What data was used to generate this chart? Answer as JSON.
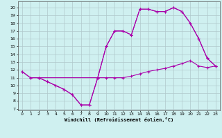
{
  "xlabel": "Windchill (Refroidissement éolien,°C)",
  "xlim": [
    -0.5,
    23.5
  ],
  "ylim": [
    6.8,
    20.8
  ],
  "yticks": [
    7,
    8,
    9,
    10,
    11,
    12,
    13,
    14,
    15,
    16,
    17,
    18,
    19,
    20
  ],
  "xticks": [
    0,
    1,
    2,
    3,
    4,
    5,
    6,
    7,
    8,
    9,
    10,
    11,
    12,
    13,
    14,
    15,
    16,
    17,
    18,
    19,
    20,
    21,
    22,
    23
  ],
  "bg_color": "#cff0f0",
  "grid_color": "#b0c8cc",
  "line_color": "#aa00aa",
  "line1_x": [
    0,
    1,
    2,
    3,
    4,
    5,
    6,
    7,
    8,
    9,
    10,
    11,
    12,
    13,
    14,
    15,
    16,
    17,
    18,
    19,
    20,
    21,
    22,
    23
  ],
  "line1_y": [
    11.8,
    11.0,
    11.0,
    10.5,
    10.0,
    9.5,
    8.8,
    7.5,
    7.5,
    11.0,
    11.0,
    11.0,
    11.0,
    11.2,
    11.5,
    11.8,
    12.0,
    12.2,
    12.5,
    12.8,
    13.2,
    12.5,
    12.3,
    12.5
  ],
  "line2_x": [
    0,
    1,
    2,
    3,
    4,
    5,
    6,
    7,
    8,
    9,
    10,
    11,
    12,
    13,
    14,
    15,
    16,
    17,
    18,
    19,
    20,
    21,
    22,
    23
  ],
  "line2_y": [
    11.8,
    11.0,
    11.0,
    10.5,
    10.0,
    9.5,
    8.8,
    7.5,
    7.5,
    11.0,
    15.0,
    17.0,
    17.0,
    16.5,
    19.8,
    19.8,
    19.5,
    19.5,
    20.0,
    19.5,
    18.0,
    16.0,
    13.5,
    12.5
  ],
  "line3_x": [
    2,
    9,
    10,
    11,
    12,
    13,
    14,
    15,
    16,
    17,
    18,
    19,
    20,
    21,
    22,
    23
  ],
  "line3_y": [
    11.0,
    11.0,
    15.0,
    17.0,
    17.0,
    16.5,
    19.8,
    19.8,
    19.5,
    19.5,
    20.0,
    19.5,
    18.0,
    16.0,
    13.5,
    12.5
  ]
}
